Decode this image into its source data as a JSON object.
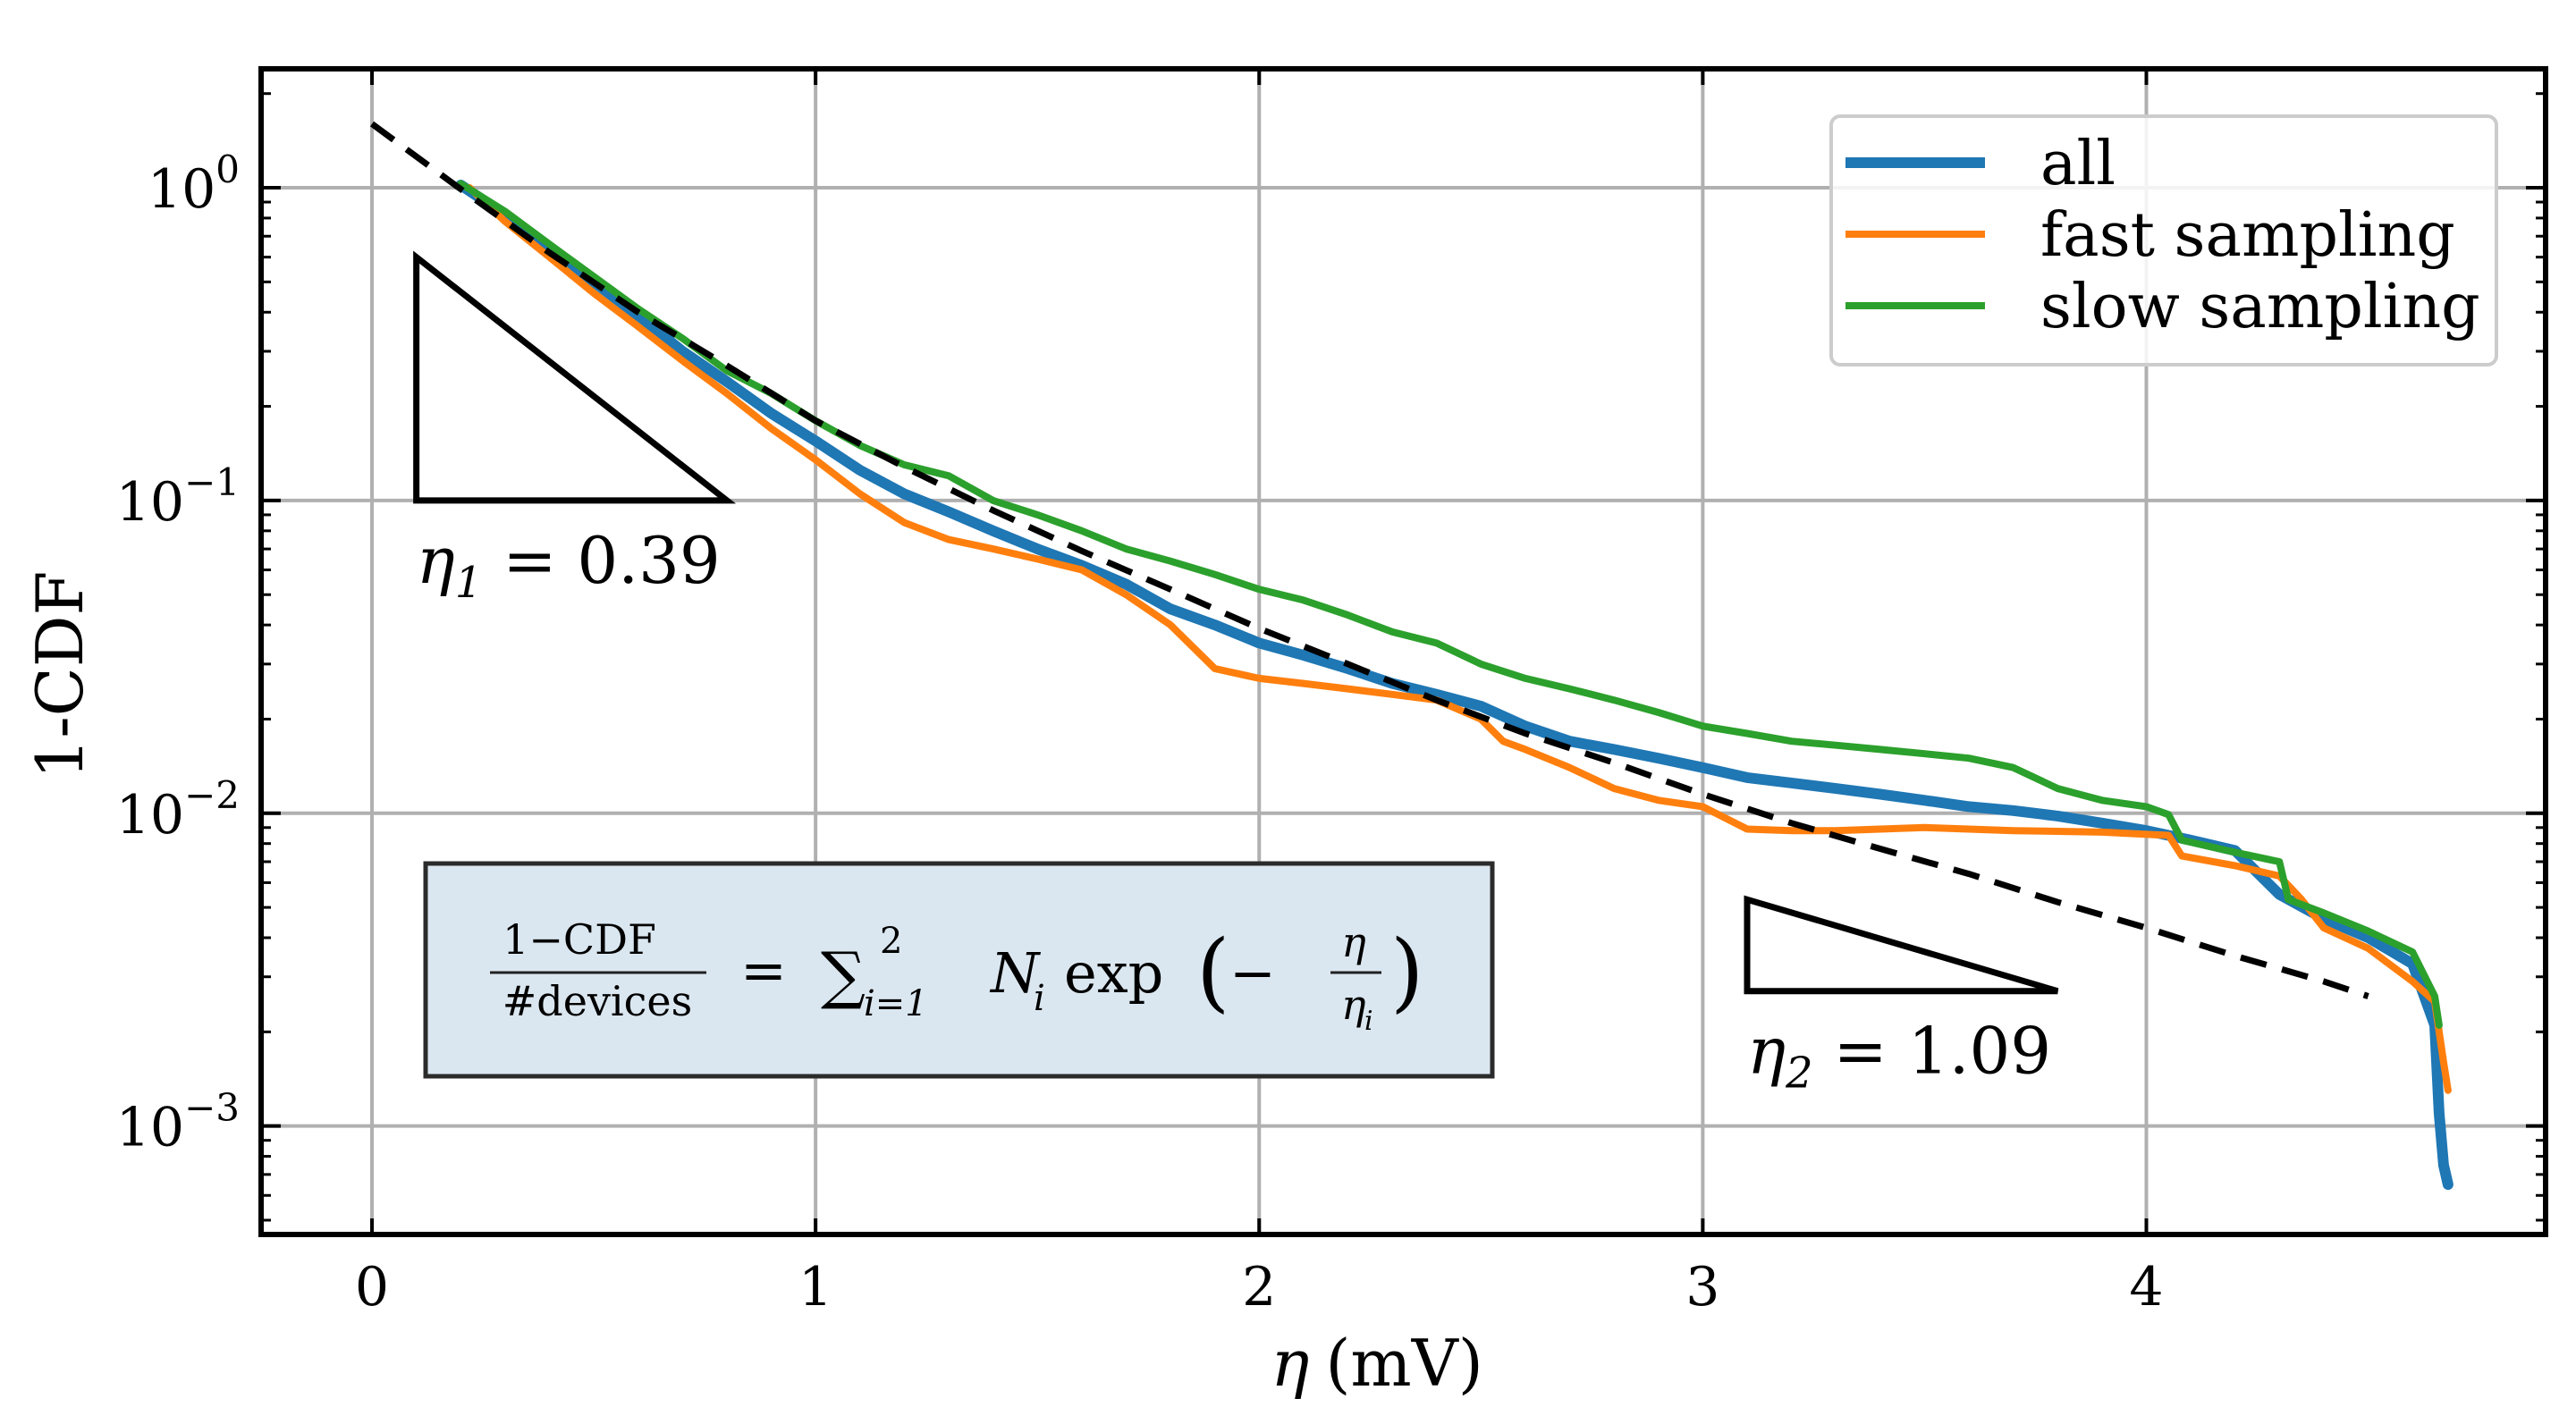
{
  "chart_data": {
    "type": "line",
    "title": "",
    "xlabel_symbol": "η",
    "xlabel_unit": "(mV)",
    "ylabel": "1-CDF",
    "xlim": [
      -0.25,
      4.9
    ],
    "ylim": [
      0.00045,
      2.4
    ],
    "yscale": "log",
    "grid": true,
    "x_ticks": [
      0,
      1,
      2,
      3,
      4
    ],
    "x_tick_labels": [
      "0",
      "1",
      "2",
      "3",
      "4"
    ],
    "y_ticks": [
      {
        "value": 1,
        "base": "10",
        "exp": "0"
      },
      {
        "value": 0.1,
        "base": "10",
        "exp": "−1"
      },
      {
        "value": 0.01,
        "base": "10",
        "exp": "−2"
      },
      {
        "value": 0.001,
        "base": "10",
        "exp": "−3"
      }
    ],
    "legend": {
      "position": "upper-right",
      "entries": [
        {
          "label": "all",
          "color": "#1f77b4"
        },
        {
          "label": "fast sampling",
          "color": "#ff7f0e"
        },
        {
          "label": "slow sampling",
          "color": "#2ca02c"
        }
      ]
    },
    "series": [
      {
        "name": "all",
        "color": "#1f77b4",
        "x": [
          0.2,
          0.3,
          0.4,
          0.5,
          0.6,
          0.7,
          0.8,
          0.9,
          1.0,
          1.1,
          1.2,
          1.3,
          1.4,
          1.5,
          1.6,
          1.7,
          1.8,
          1.9,
          2.0,
          2.1,
          2.2,
          2.3,
          2.4,
          2.5,
          2.6,
          2.7,
          2.8,
          2.9,
          3.0,
          3.1,
          3.2,
          3.3,
          3.4,
          3.5,
          3.6,
          3.7,
          3.8,
          3.9,
          4.0,
          4.1,
          4.2,
          4.3,
          4.4,
          4.5,
          4.6,
          4.65,
          4.66,
          4.67,
          4.68
        ],
        "y": [
          1.02,
          0.82,
          0.64,
          0.5,
          0.39,
          0.3,
          0.24,
          0.19,
          0.155,
          0.125,
          0.105,
          0.092,
          0.08,
          0.07,
          0.062,
          0.054,
          0.045,
          0.04,
          0.035,
          0.032,
          0.029,
          0.026,
          0.024,
          0.022,
          0.019,
          0.017,
          0.016,
          0.015,
          0.014,
          0.013,
          0.0125,
          0.012,
          0.0115,
          0.011,
          0.0105,
          0.0102,
          0.0098,
          0.0093,
          0.0088,
          0.0082,
          0.0076,
          0.0055,
          0.0046,
          0.004,
          0.0033,
          0.0021,
          0.0011,
          0.00075,
          0.00065
        ]
      },
      {
        "name": "fast sampling",
        "color": "#ff7f0e",
        "x": [
          0.22,
          0.3,
          0.4,
          0.5,
          0.6,
          0.7,
          0.8,
          0.9,
          1.0,
          1.1,
          1.2,
          1.3,
          1.4,
          1.5,
          1.6,
          1.7,
          1.8,
          1.9,
          2.0,
          2.1,
          2.2,
          2.3,
          2.4,
          2.5,
          2.55,
          2.6,
          2.7,
          2.8,
          2.9,
          3.0,
          3.1,
          3.2,
          3.3,
          3.5,
          3.7,
          3.9,
          4.05,
          4.08,
          4.2,
          4.3,
          4.35,
          4.4,
          4.5,
          4.6,
          4.65,
          4.67,
          4.68
        ],
        "y": [
          1.0,
          0.78,
          0.6,
          0.46,
          0.36,
          0.28,
          0.22,
          0.17,
          0.135,
          0.105,
          0.085,
          0.075,
          0.07,
          0.065,
          0.06,
          0.05,
          0.04,
          0.029,
          0.027,
          0.026,
          0.025,
          0.024,
          0.023,
          0.02,
          0.017,
          0.016,
          0.014,
          0.012,
          0.011,
          0.0105,
          0.0089,
          0.0088,
          0.0088,
          0.009,
          0.0088,
          0.0087,
          0.0085,
          0.0073,
          0.0068,
          0.0063,
          0.0053,
          0.0043,
          0.0037,
          0.0029,
          0.0025,
          0.0016,
          0.0013
        ]
      },
      {
        "name": "slow sampling",
        "color": "#2ca02c",
        "x": [
          0.2,
          0.3,
          0.4,
          0.5,
          0.6,
          0.7,
          0.8,
          0.9,
          1.0,
          1.1,
          1.2,
          1.3,
          1.4,
          1.5,
          1.6,
          1.7,
          1.8,
          1.9,
          2.0,
          2.1,
          2.2,
          2.3,
          2.4,
          2.5,
          2.6,
          2.7,
          2.8,
          2.9,
          3.0,
          3.1,
          3.2,
          3.3,
          3.4,
          3.5,
          3.6,
          3.7,
          3.8,
          3.9,
          4.0,
          4.05,
          4.08,
          4.2,
          4.3,
          4.32,
          4.4,
          4.5,
          4.6,
          4.65,
          4.66
        ],
        "y": [
          1.03,
          0.84,
          0.66,
          0.52,
          0.41,
          0.33,
          0.26,
          0.22,
          0.18,
          0.15,
          0.13,
          0.12,
          0.1,
          0.09,
          0.08,
          0.07,
          0.064,
          0.058,
          0.052,
          0.048,
          0.043,
          0.038,
          0.035,
          0.03,
          0.027,
          0.025,
          0.023,
          0.021,
          0.019,
          0.018,
          0.017,
          0.0165,
          0.016,
          0.0155,
          0.015,
          0.014,
          0.012,
          0.011,
          0.0105,
          0.0099,
          0.0082,
          0.0075,
          0.007,
          0.0053,
          0.0048,
          0.0042,
          0.0036,
          0.0026,
          0.0021
        ]
      },
      {
        "name": "fit",
        "color": "#000000",
        "style": "dashed",
        "x": [
          0.0,
          0.2,
          0.4,
          0.6,
          0.8,
          1.0,
          1.2,
          1.4,
          1.6,
          1.8,
          2.0,
          2.2,
          2.4,
          2.6,
          2.8,
          3.0,
          3.2,
          3.4,
          3.6,
          3.8,
          4.0,
          4.2,
          4.4,
          4.5
        ],
        "y": [
          1.6,
          0.99,
          0.62,
          0.4,
          0.27,
          0.18,
          0.128,
          0.093,
          0.069,
          0.052,
          0.039,
          0.03,
          0.023,
          0.018,
          0.0145,
          0.0115,
          0.0093,
          0.0077,
          0.0064,
          0.0052,
          0.0043,
          0.0035,
          0.0029,
          0.0026
        ]
      }
    ],
    "annotations": {
      "slope1": {
        "sym": "η",
        "sub": "1",
        "text": " = 0.39",
        "x0": 0.1,
        "x1": 0.8,
        "y_low": 0.1,
        "y_high": 0.6
      },
      "slope2": {
        "sym": "η",
        "sub": "2",
        "text": " = 1.09",
        "x0": 3.1,
        "x1": 3.8,
        "y_low": 0.0027,
        "y_high": 0.0053
      },
      "formula": {
        "numerator": "1−CDF",
        "denominator": "#devices",
        "equals": "=",
        "sum": "∑",
        "sum_upper": "2",
        "sum_lower": "i=1",
        "term": "N",
        "term_sub": "i",
        "func": "exp",
        "paren_open": "(",
        "minus": "−",
        "frac_num": "η",
        "frac_den": "η",
        "frac_den_sub": "i",
        "paren_close": ")"
      }
    }
  }
}
